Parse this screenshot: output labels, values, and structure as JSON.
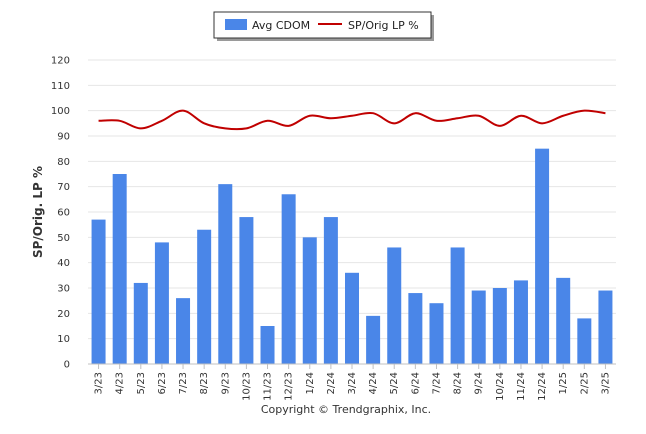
{
  "chart_data": {
    "type": "bar",
    "title": "",
    "xlabel": "",
    "ylabel": "SP/Orig. LP %",
    "ylim": [
      0,
      120
    ],
    "yticks": [
      0,
      10,
      20,
      30,
      40,
      50,
      60,
      70,
      80,
      90,
      100,
      110,
      120
    ],
    "grid": true,
    "legend_position": "top-center",
    "categories": [
      "3/23",
      "4/23",
      "5/23",
      "6/23",
      "7/23",
      "8/23",
      "9/23",
      "10/23",
      "11/23",
      "12/23",
      "1/24",
      "2/24",
      "3/24",
      "4/24",
      "5/24",
      "6/24",
      "7/24",
      "8/24",
      "9/24",
      "10/24",
      "11/24",
      "12/24",
      "1/25",
      "2/25",
      "3/25"
    ],
    "series": [
      {
        "name": "Avg CDOM",
        "type": "bar",
        "color": "#4a86e8",
        "values": [
          57,
          75,
          32,
          48,
          26,
          53,
          71,
          58,
          15,
          67,
          50,
          58,
          36,
          19,
          46,
          28,
          24,
          46,
          29,
          30,
          33,
          85,
          34,
          18,
          29
        ]
      },
      {
        "name": "SP/Orig LP %",
        "type": "line",
        "color": "#c00000",
        "values": [
          96,
          96,
          93,
          96,
          100,
          95,
          93,
          93,
          96,
          94,
          98,
          97,
          98,
          99,
          95,
          99,
          96,
          97,
          98,
          94,
          98,
          95,
          98,
          100,
          99
        ]
      }
    ]
  },
  "footer": {
    "credit": "Copyright © Trendgraphix, Inc."
  }
}
